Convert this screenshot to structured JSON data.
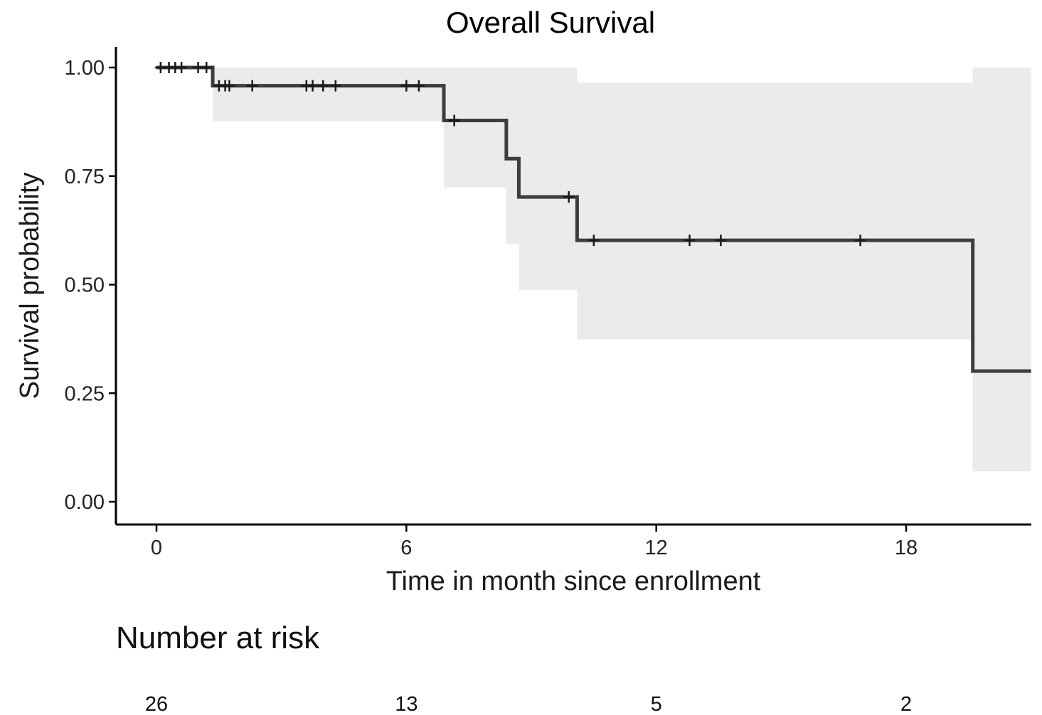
{
  "chart_data": {
    "type": "line",
    "subtype": "kaplan-meier",
    "title": "Overall Survival",
    "xlabel": "Time in month since enrollment",
    "ylabel": "Survival probability",
    "xlim": [
      -1,
      21
    ],
    "ylim": [
      -0.045,
      1.045
    ],
    "x_ticks": [
      0,
      6,
      12,
      18
    ],
    "x_tick_labels": [
      "0",
      "6",
      "12",
      "18"
    ],
    "y_ticks": [
      0,
      0.25,
      0.5,
      0.75,
      1.0
    ],
    "y_tick_labels": [
      "0.00",
      "0.25",
      "0.50",
      "0.75",
      "1.00"
    ],
    "grid": false,
    "legend": "none",
    "colors": {
      "line": "#3d3d3d",
      "ci_band": "#ebebeb",
      "axis": "#000000"
    },
    "survival_curve": [
      {
        "x": 0,
        "y": 1.0
      },
      {
        "x": 1.35,
        "y": 0.958
      },
      {
        "x": 6.9,
        "y": 0.878
      },
      {
        "x": 8.4,
        "y": 0.79
      },
      {
        "x": 8.7,
        "y": 0.702
      },
      {
        "x": 10.1,
        "y": 0.602
      },
      {
        "x": 19.6,
        "y": 0.301
      },
      {
        "x": 21,
        "y": 0.301
      }
    ],
    "confidence_band": [
      {
        "x": 0,
        "lower": 1.0,
        "upper": 1.0
      },
      {
        "x": 1.35,
        "lower": 0.877,
        "upper": 1.0
      },
      {
        "x": 6.9,
        "lower": 0.724,
        "upper": 1.0
      },
      {
        "x": 8.4,
        "lower": 0.594,
        "upper": 1.0
      },
      {
        "x": 8.7,
        "lower": 0.488,
        "upper": 1.0
      },
      {
        "x": 10.1,
        "lower": 0.374,
        "upper": 0.965
      },
      {
        "x": 19.6,
        "lower": 0.07,
        "upper": 1.0
      },
      {
        "x": 21,
        "lower": 0.07,
        "upper": 1.0
      }
    ],
    "censor_marks": [
      {
        "x": 0.1,
        "y": 1.0
      },
      {
        "x": 0.3,
        "y": 1.0
      },
      {
        "x": 0.45,
        "y": 1.0
      },
      {
        "x": 0.6,
        "y": 1.0
      },
      {
        "x": 1.0,
        "y": 1.0
      },
      {
        "x": 1.2,
        "y": 1.0
      },
      {
        "x": 1.5,
        "y": 0.958
      },
      {
        "x": 1.65,
        "y": 0.958
      },
      {
        "x": 1.75,
        "y": 0.958
      },
      {
        "x": 2.3,
        "y": 0.958
      },
      {
        "x": 3.6,
        "y": 0.958
      },
      {
        "x": 3.75,
        "y": 0.958
      },
      {
        "x": 4.0,
        "y": 0.958
      },
      {
        "x": 4.3,
        "y": 0.958
      },
      {
        "x": 6.0,
        "y": 0.958
      },
      {
        "x": 6.3,
        "y": 0.958
      },
      {
        "x": 7.15,
        "y": 0.878
      },
      {
        "x": 9.9,
        "y": 0.702
      },
      {
        "x": 10.5,
        "y": 0.602
      },
      {
        "x": 12.8,
        "y": 0.602
      },
      {
        "x": 13.55,
        "y": 0.602
      },
      {
        "x": 16.9,
        "y": 0.602
      }
    ],
    "risk_table": {
      "title": "Number at risk",
      "times": [
        0,
        6,
        12,
        18
      ],
      "counts": [
        "26",
        "13",
        "5",
        "2"
      ]
    }
  }
}
